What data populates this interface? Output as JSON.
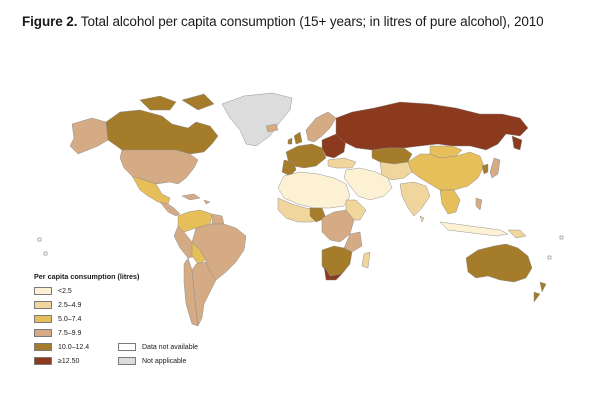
{
  "title": {
    "figure_label": "Figure 2.",
    "text": "Total alcohol per capita consumption (15+ years; in litres of pure alcohol), 2010"
  },
  "legend": {
    "title": "Per capita consumption (litres)",
    "items": [
      {
        "label": "<2.5",
        "color": "#fdf1d3"
      },
      {
        "label": "2.5–4.9",
        "color": "#f0d59c"
      },
      {
        "label": "5.0–7.4",
        "color": "#e6be5a"
      },
      {
        "label": "7.5–9.9",
        "color": "#d4ab84"
      },
      {
        "label": "10.0–12.4",
        "color": "#a57c2a"
      },
      {
        "label": "≥12.50",
        "color": "#8b3a1e"
      }
    ],
    "extra": [
      {
        "label": "Data not available",
        "color": "#ffffff"
      },
      {
        "label": "Not applicable",
        "color": "#dcdcdc"
      }
    ]
  }
}
